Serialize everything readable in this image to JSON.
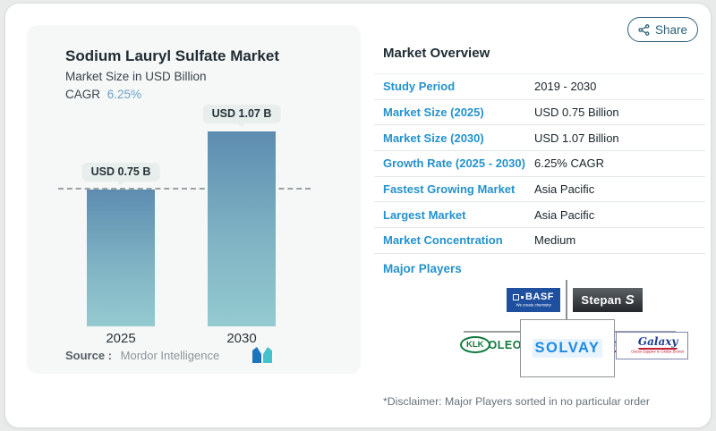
{
  "share": {
    "label": "Share"
  },
  "chart_panel": {
    "title": "Sodium Lauryl Sulfate Market",
    "subtitle": "Market Size in USD Billion",
    "cagr_label": "CAGR",
    "cagr_value": "6.25%",
    "source_label": "Source :",
    "source_value": "Mordor Intelligence"
  },
  "chart_data": {
    "type": "bar",
    "title": "Sodium Lauryl Sulfate Market",
    "ylabel": "Market Size in USD Billion",
    "categories": [
      "2025",
      "2030"
    ],
    "values": [
      0.75,
      1.07
    ],
    "bar_labels": [
      "USD 0.75 B",
      "USD 1.07 B"
    ],
    "cagr_percent": 6.25,
    "dashed_reference_value": 0.75,
    "legend": "none",
    "grid": "off",
    "bar_color_top": "#5d8cb0",
    "bar_color_bottom": "#94cad0"
  },
  "overview": {
    "heading": "Market Overview",
    "rows": [
      {
        "label": "Study Period",
        "value": "2019 - 2030"
      },
      {
        "label": "Market Size (2025)",
        "value": "USD 0.75 Billion"
      },
      {
        "label": "Market Size (2030)",
        "value": "USD 1.07 Billion"
      },
      {
        "label": "Growth Rate (2025 - 2030)",
        "value": "6.25% CAGR"
      },
      {
        "label": "Fastest Growing Market",
        "value": "Asia Pacific"
      },
      {
        "label": "Largest Market",
        "value": "Asia Pacific"
      },
      {
        "label": "Market Concentration",
        "value": "Medium"
      }
    ],
    "major_players_label": "Major Players",
    "players": [
      "BASF",
      "Stepan",
      "KLK OLEO",
      "SOLVAY",
      "Galaxy"
    ],
    "disclaimer": "*Disclaimer: Major Players sorted in no particular order"
  },
  "logos": {
    "basf": {
      "name": "BASF",
      "tagline": "We create chemistry"
    },
    "stepan": {
      "name": "Stepan",
      "monogram": "S"
    },
    "klk": {
      "oval_text": "KLK",
      "suffix": "OLEO"
    },
    "solvay": {
      "name": "SOLVAY"
    },
    "galaxy": {
      "monogram": "G",
      "name": "Galaxy",
      "tagline": "Global Supplier to Global Brands"
    }
  },
  "colors": {
    "accent_blue": "#2492cc",
    "cagr_blue": "#6ba3c6",
    "share_teal": "#2e5f78",
    "badge_bg": "#e8eeec",
    "panel_bg": "#f6f7f7",
    "mi_logo_blue": "#1b75bc",
    "mi_logo_teal": "#45c2cb"
  }
}
